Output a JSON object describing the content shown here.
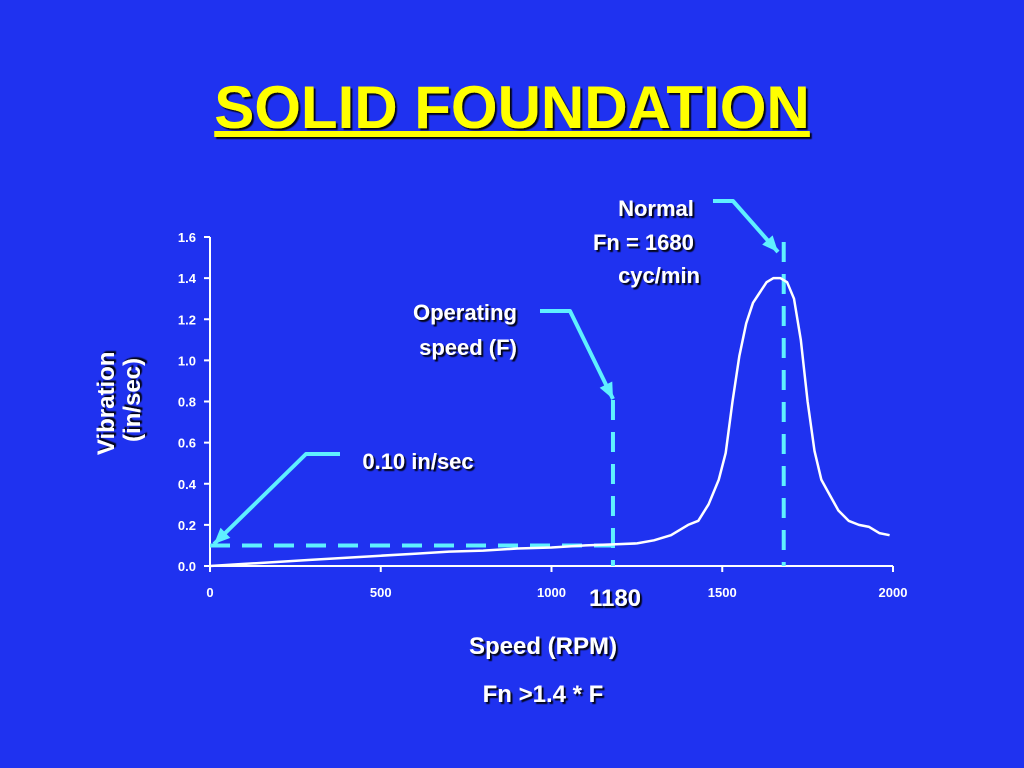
{
  "title": "SOLID FOUNDATION",
  "colors": {
    "background": "#1f32f0",
    "title": "#ffff00",
    "text": "#ffffff",
    "curve": "#ffffff",
    "annotation": "#5ff0ff"
  },
  "chart_data": {
    "type": "line",
    "xlabel": "Speed (RPM)",
    "ylabel": "Vibration (in/sec)",
    "ylabel_lines": [
      "Vibration",
      "(in/sec)"
    ],
    "xlim": [
      0,
      2000
    ],
    "ylim": [
      0,
      1.6
    ],
    "x_ticks": [
      0,
      500,
      1000,
      1500,
      2000
    ],
    "x_tick_labels": [
      "0",
      "500",
      "1000",
      "1500",
      "2000"
    ],
    "y_ticks": [
      0,
      0.2,
      0.4,
      0.6,
      0.8,
      1.0,
      1.2,
      1.4,
      1.6
    ],
    "y_tick_labels": [
      "0.0",
      "0.2",
      "0.4",
      "0.6",
      "0.8",
      "1.0",
      "1.2",
      "1.4",
      "1.6"
    ],
    "grid": false,
    "legend": "none",
    "series": [
      {
        "x": [
          0,
          100,
          200,
          300,
          400,
          500,
          600,
          700,
          800,
          900,
          1000,
          1100,
          1180,
          1250,
          1300,
          1350,
          1400,
          1430,
          1460,
          1490,
          1510,
          1530,
          1550,
          1570,
          1590,
          1610,
          1630,
          1650,
          1670,
          1690,
          1710,
          1730,
          1750,
          1770,
          1790,
          1810,
          1840,
          1870,
          1900,
          1930,
          1960,
          1990
        ],
        "y": [
          0.0,
          0.01,
          0.02,
          0.03,
          0.04,
          0.05,
          0.06,
          0.07,
          0.075,
          0.085,
          0.09,
          0.1,
          0.105,
          0.11,
          0.125,
          0.15,
          0.2,
          0.22,
          0.3,
          0.42,
          0.55,
          0.8,
          1.02,
          1.18,
          1.28,
          1.33,
          1.38,
          1.4,
          1.4,
          1.38,
          1.3,
          1.1,
          0.8,
          0.56,
          0.42,
          0.36,
          0.27,
          0.22,
          0.2,
          0.19,
          0.16,
          0.15
        ]
      }
    ],
    "annotations": {
      "operating_speed": {
        "x": 1180,
        "label_lines": [
          "Operating",
          "speed (F)"
        ],
        "tick_label": "1180"
      },
      "natural_frequency": {
        "x": 1680,
        "label_lines": [
          "Normal",
          "Fn = 1680",
          "cyc/min"
        ]
      },
      "vibration_level": {
        "y": 0.1,
        "label": "0.10 in/sec"
      },
      "formula": "Fn >1.4 * F"
    }
  }
}
